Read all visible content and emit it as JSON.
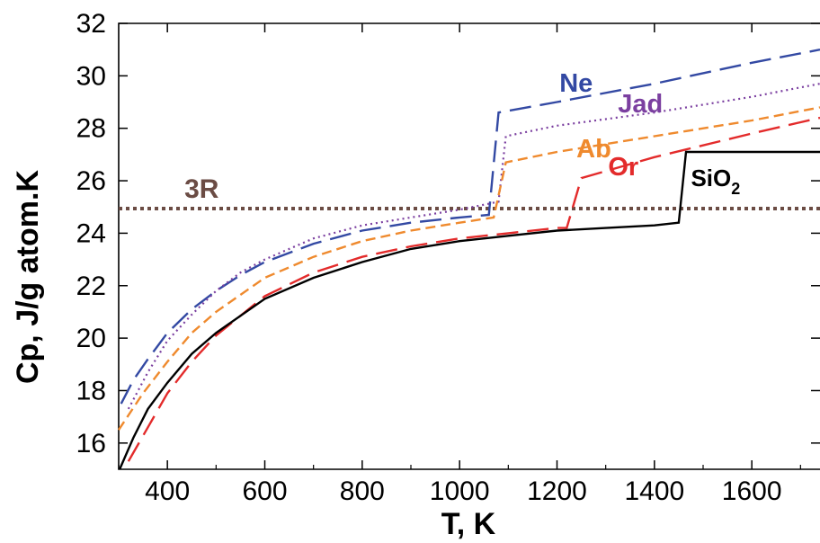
{
  "chart_data": {
    "type": "line",
    "title": "",
    "xlabel": "T, K",
    "ylabel": "Cp, J/g atom.K",
    "xlim": [
      300,
      1740
    ],
    "ylim": [
      15,
      32
    ],
    "xticks": [
      400,
      600,
      800,
      1000,
      1200,
      1400,
      1600
    ],
    "yticks": [
      16,
      18,
      20,
      22,
      24,
      26,
      28,
      30,
      32
    ],
    "grid": false,
    "legend": "inline labels",
    "reference_line": {
      "label": "3R",
      "y": 24.94,
      "color": "#6b4c44"
    },
    "series": [
      {
        "name": "Ne",
        "color": "#3349a3",
        "dash": "long",
        "x": [
          305,
          330,
          360,
          400,
          450,
          500,
          550,
          600,
          700,
          800,
          900,
          1000,
          1060,
          1080,
          1200,
          1400,
          1600,
          1740
        ],
        "y": [
          17.5,
          18.4,
          19.2,
          20.2,
          21.1,
          21.8,
          22.4,
          22.9,
          23.6,
          24.1,
          24.4,
          24.6,
          24.7,
          28.6,
          29.0,
          29.7,
          30.5,
          31.0
        ]
      },
      {
        "name": "Jad",
        "color": "#7b3fa0",
        "dash": "dotted",
        "x": [
          320,
          360,
          400,
          450,
          500,
          550,
          600,
          700,
          800,
          900,
          1000,
          1080,
          1095,
          1200,
          1400,
          1600,
          1740
        ],
        "y": [
          17.3,
          18.7,
          19.9,
          20.9,
          21.8,
          22.5,
          23.0,
          23.8,
          24.3,
          24.6,
          24.9,
          25.2,
          27.7,
          28.1,
          28.6,
          29.2,
          29.7
        ]
      },
      {
        "name": "Ab",
        "color": "#ef8a2e",
        "dash": "medium",
        "x": [
          300,
          350,
          400,
          450,
          500,
          600,
          700,
          800,
          900,
          1000,
          1070,
          1095,
          1200,
          1400,
          1600,
          1740
        ],
        "y": [
          16.5,
          17.9,
          19.1,
          20.2,
          21.0,
          22.3,
          23.1,
          23.7,
          24.1,
          24.4,
          24.6,
          26.7,
          27.1,
          27.7,
          28.3,
          28.8
        ]
      },
      {
        "name": "Or",
        "color": "#e32b2b",
        "dash": "long",
        "x": [
          320,
          360,
          400,
          450,
          500,
          600,
          700,
          800,
          900,
          1000,
          1100,
          1200,
          1220,
          1250,
          1400,
          1600,
          1740
        ],
        "y": [
          15.3,
          16.6,
          17.9,
          19.1,
          20.1,
          21.6,
          22.5,
          23.1,
          23.5,
          23.8,
          24.0,
          24.2,
          24.2,
          26.1,
          26.9,
          27.8,
          28.4
        ]
      },
      {
        "name": "SiO2",
        "color": "#000000",
        "dash": "solid",
        "x": [
          302,
          330,
          360,
          400,
          450,
          500,
          600,
          700,
          800,
          900,
          1000,
          1100,
          1200,
          1300,
          1400,
          1450,
          1465,
          1740
        ],
        "y": [
          15.0,
          16.2,
          17.3,
          18.3,
          19.4,
          20.2,
          21.5,
          22.3,
          22.9,
          23.4,
          23.7,
          23.9,
          24.1,
          24.2,
          24.3,
          24.4,
          27.1,
          27.1
        ]
      }
    ],
    "labels": [
      {
        "text": "Ne",
        "series": "Ne",
        "x": 1205,
        "y": 29.4
      },
      {
        "text": "Jad",
        "series": "Jad",
        "x": 1325,
        "y": 28.6
      },
      {
        "text": "Ab",
        "series": "Ab",
        "x": 1240,
        "y": 26.9
      },
      {
        "text": "Or",
        "series": "Or",
        "x": 1305,
        "y": 26.2
      },
      {
        "text": "SiO",
        "sub": "2",
        "series": "SiO2",
        "x": 1475,
        "y": 25.8
      },
      {
        "text": "3R",
        "series": "3R",
        "x": 435,
        "y": 25.35
      }
    ]
  }
}
